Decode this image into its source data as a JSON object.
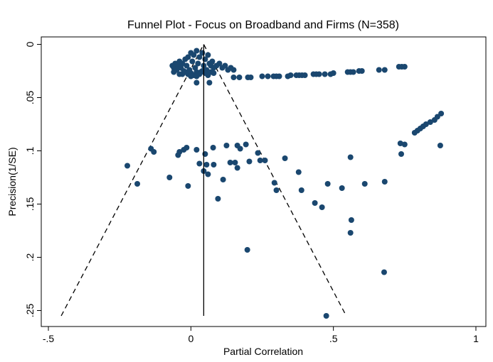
{
  "chart_data": {
    "type": "scatter",
    "title": "Funnel Plot - Focus on Broadband and Firms (N=358)",
    "x_label": "Partial Correlation",
    "y_label": "Precision(1/SE)",
    "xlim": [
      -0.525,
      1.035
    ],
    "ylim": [
      -0.007,
      0.265
    ],
    "y_reversed": true,
    "grid": false,
    "xticks": [
      {
        "value": -0.5,
        "label": "-.5"
      },
      0,
      {
        "value": 0.5,
        "label": ".5"
      },
      1
    ],
    "yticks": [
      0,
      {
        "value": 0.05,
        "label": ".05"
      },
      {
        "value": 0.1,
        "label": ".1"
      },
      {
        "value": 0.15,
        "label": ".15"
      },
      {
        "value": 0.2,
        "label": ".2"
      },
      {
        "value": 0.25,
        "label": ".25"
      }
    ],
    "color": "#1a476f",
    "center_line": {
      "x": [
        0.045,
        0.045
      ],
      "y": [
        0,
        0.255
      ]
    },
    "funnel": {
      "x": [
        -0.455,
        0.045,
        0.545
      ],
      "y": [
        0.255,
        0,
        0.255
      ]
    },
    "x": [
      -0.223,
      -0.188,
      -0.14,
      -0.13,
      -0.075,
      -0.045,
      -0.04,
      -0.025,
      -0.015,
      -0.01,
      0.02,
      0.03,
      0.045,
      0.05,
      0.055,
      0.06,
      0.08,
      0.078,
      0.095,
      0.113,
      0.125,
      0.138,
      0.155,
      0.163,
      0.163,
      0.173,
      0.193,
      0.198,
      0.205,
      0.235,
      0.243,
      0.26,
      0.293,
      0.3,
      0.33,
      0.378,
      0.388,
      0.435,
      0.46,
      0.475,
      0.48,
      0.53,
      0.56,
      0.563,
      0.56,
      0.61,
      0.68,
      0.678,
      0.735,
      0.75,
      0.738,
      0.875,
      0.785,
      0.795,
      0.805,
      0.815,
      0.825,
      0.84,
      0.855,
      0.865,
      0.878,
      0.15,
      0.17,
      0.2,
      0.21,
      0.25,
      0.27,
      0.29,
      0.3,
      0.31,
      0.34,
      0.35,
      0.37,
      0.38,
      0.39,
      0.4,
      0.43,
      0.44,
      0.45,
      0.47,
      0.49,
      0.5,
      0.55,
      0.56,
      0.57,
      0.59,
      0.6,
      0.66,
      0.68,
      0.73,
      0.74,
      0.75,
      0.09,
      0.11,
      0.13,
      0.15,
      0.02,
      0.065,
      -0.065,
      -0.06,
      -0.055,
      -0.05,
      -0.045,
      -0.04,
      -0.035,
      -0.03,
      -0.025,
      -0.02,
      -0.015,
      -0.01,
      -0.005,
      0,
      0.005,
      0.01,
      0.015,
      0.02,
      0.025,
      0.03,
      0.035,
      0.04,
      0.045,
      0.05,
      0.055,
      0.06,
      0.065,
      0.07,
      0.075,
      0.08,
      -0.03,
      -0.02,
      -0.01,
      0,
      0.01,
      0.02,
      0.03,
      0.04,
      0.05,
      0.06,
      0.07,
      0.1,
      0.12,
      0.14,
      -0.06,
      -0.04,
      0,
      0.02,
      0.06,
      0.08
    ],
    "y": [
      0.114,
      0.131,
      0.098,
      0.101,
      0.125,
      0.104,
      0.101,
      0.099,
      0.097,
      0.133,
      0.099,
      0.112,
      0.119,
      0.103,
      0.113,
      0.122,
      0.113,
      0.097,
      0.145,
      0.127,
      0.095,
      0.111,
      0.111,
      0.095,
      0.116,
      0.098,
      0.094,
      0.193,
      0.11,
      0.102,
      0.109,
      0.109,
      0.13,
      0.137,
      0.107,
      0.12,
      0.137,
      0.149,
      0.153,
      0.255,
      0.131,
      0.135,
      0.106,
      0.165,
      0.177,
      0.131,
      0.129,
      0.214,
      0.093,
      0.094,
      0.103,
      0.095,
      0.083,
      0.081,
      0.079,
      0.077,
      0.075,
      0.073,
      0.071,
      0.068,
      0.065,
      0.031,
      0.031,
      0.031,
      0.031,
      0.03,
      0.03,
      0.03,
      0.03,
      0.03,
      0.03,
      0.029,
      0.029,
      0.029,
      0.029,
      0.029,
      0.028,
      0.028,
      0.028,
      0.028,
      0.028,
      0.027,
      0.026,
      0.026,
      0.026,
      0.025,
      0.025,
      0.024,
      0.024,
      0.021,
      0.021,
      0.021,
      0.02,
      0.022,
      0.024,
      0.024,
      0.036,
      0.036,
      0.02,
      0.022,
      0.018,
      0.024,
      0.02,
      0.016,
      0.022,
      0.018,
      0.025,
      0.014,
      0.02,
      0.012,
      0.024,
      0.008,
      0.016,
      0.01,
      0.022,
      0.006,
      0.018,
      0.012,
      0.026,
      0.008,
      0.02,
      0.014,
      0.024,
      0.01,
      0.018,
      0.02,
      0.016,
      0.022,
      0.028,
      0.026,
      0.028,
      0.027,
      0.029,
      0.026,
      0.028,
      0.025,
      0.027,
      0.029,
      0.026,
      0.018,
      0.02,
      0.022,
      0.026,
      0.028,
      0.03,
      0.03,
      0.028,
      0.027
    ]
  }
}
